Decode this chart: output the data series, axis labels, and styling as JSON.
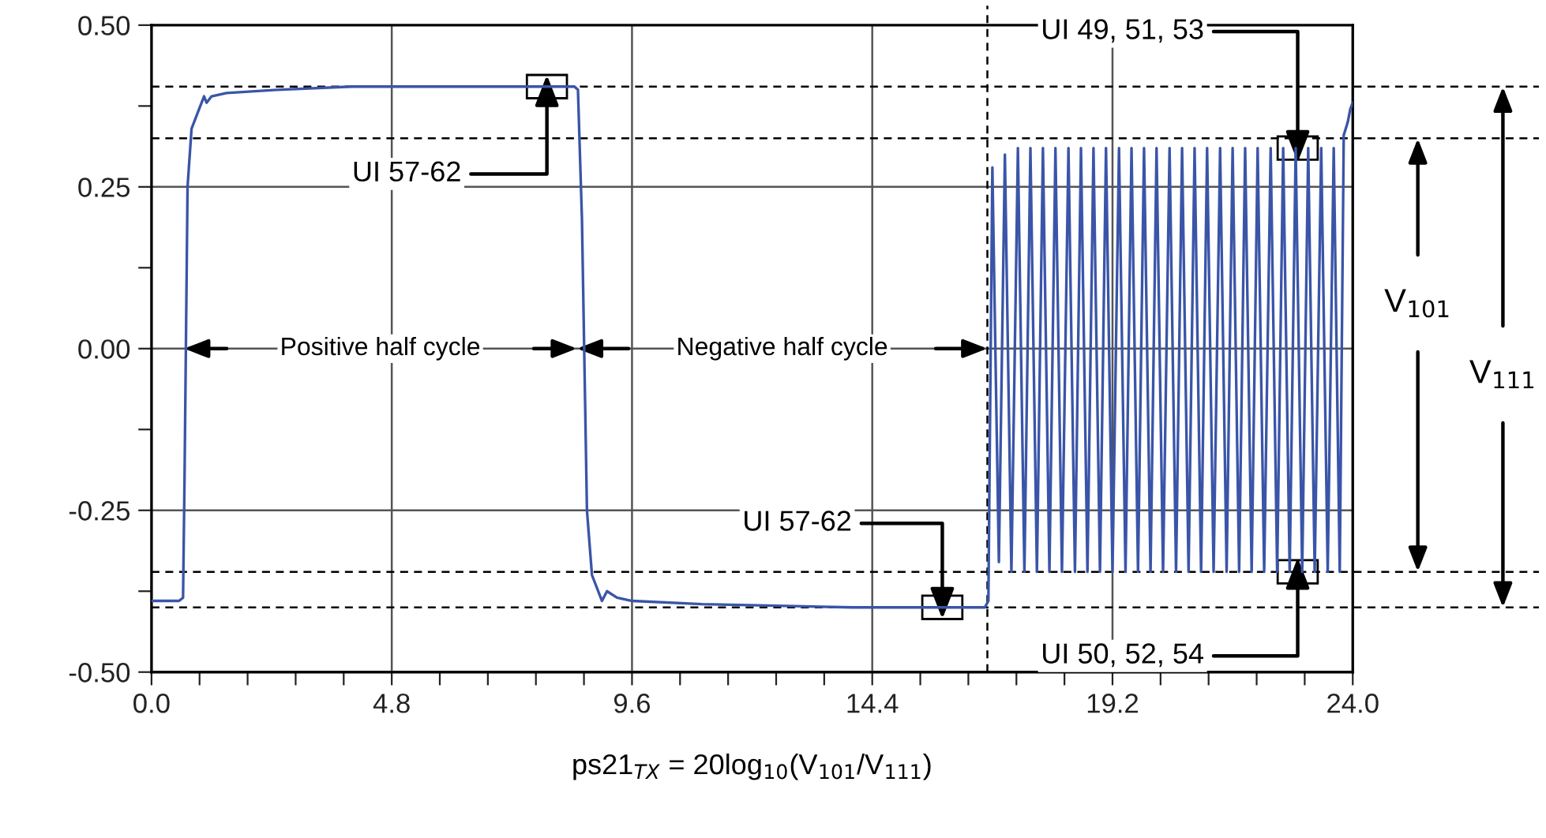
{
  "chart_data": {
    "type": "line",
    "xlabel": "ps21$_{TX}$ = 20log$_{10}$(V$_{101}$/V$_{111}$)",
    "series": [
      {
        "color": "#3a55a8",
        "line_style": "solid",
        "marker": "none",
        "x": [
          0,
          0.55,
          0.63,
          0.66,
          0.72,
          0.8,
          0.95,
          1.05,
          1.1,
          1.2,
          1.5,
          2.5,
          4,
          6,
          8.45,
          8.52,
          8.6,
          8.7,
          8.8,
          9.0,
          9.1,
          9.3,
          9.6,
          11,
          14,
          16.65,
          16.72,
          16.8,
          16.93,
          17.05,
          17.18,
          17.31,
          17.44,
          17.56,
          17.69,
          17.81,
          17.94,
          18.06,
          18.19,
          18.32,
          18.45,
          18.57,
          18.7,
          18.82,
          18.95,
          19.07,
          19.2,
          19.33,
          19.46,
          19.58,
          19.71,
          19.83,
          19.96,
          20.08,
          20.21,
          20.34,
          20.47,
          20.59,
          20.72,
          20.84,
          20.97,
          21.09,
          21.22,
          21.35,
          21.48,
          21.6,
          21.73,
          21.85,
          21.98,
          22.1,
          22.23,
          22.36,
          22.49,
          22.61,
          22.74,
          22.86,
          22.99,
          23.11,
          23.24,
          23.37,
          23.5,
          23.62,
          23.74,
          23.82,
          23.9,
          23.95,
          24.0
        ],
        "values": [
          -0.39,
          -0.39,
          -0.385,
          -0.2,
          0.25,
          0.34,
          0.37,
          0.39,
          0.38,
          0.39,
          0.395,
          0.4,
          0.405,
          0.405,
          0.405,
          0.4,
          0.2,
          -0.25,
          -0.35,
          -0.39,
          -0.375,
          -0.385,
          -0.39,
          -0.395,
          -0.4,
          -0.4,
          -0.39,
          0.28,
          -0.33,
          0.3,
          -0.345,
          0.31,
          -0.345,
          0.31,
          -0.345,
          0.31,
          -0.345,
          0.31,
          -0.345,
          0.31,
          -0.345,
          0.31,
          -0.345,
          0.31,
          -0.345,
          0.31,
          -0.345,
          0.31,
          -0.345,
          0.31,
          -0.345,
          0.31,
          -0.345,
          0.31,
          -0.345,
          0.31,
          -0.345,
          0.31,
          -0.345,
          0.31,
          -0.345,
          0.31,
          -0.345,
          0.31,
          -0.345,
          0.31,
          -0.345,
          0.31,
          -0.345,
          0.31,
          -0.345,
          0.31,
          -0.345,
          0.31,
          -0.345,
          0.31,
          -0.345,
          0.31,
          -0.345,
          0.31,
          -0.345,
          0.31,
          -0.345,
          0.33,
          0.35,
          0.37,
          0.38
        ]
      }
    ],
    "xlim": [
      0,
      24
    ],
    "ylim": [
      -0.5,
      0.5
    ],
    "xticks": [
      {
        "value": 0,
        "label": "0.0"
      },
      {
        "value": 0.96,
        "label": null
      },
      {
        "value": 1.92,
        "label": null
      },
      {
        "value": 2.88,
        "label": null
      },
      {
        "value": 3.84,
        "label": null
      },
      {
        "value": 4.8,
        "label": "4.8"
      },
      {
        "value": 5.76,
        "label": null
      },
      {
        "value": 6.72,
        "label": null
      },
      {
        "value": 7.68,
        "label": null
      },
      {
        "value": 8.64,
        "label": null
      },
      {
        "value": 9.6,
        "label": "9.6"
      },
      {
        "value": 10.56,
        "label": null
      },
      {
        "value": 11.52,
        "label": null
      },
      {
        "value": 12.48,
        "label": null
      },
      {
        "value": 13.44,
        "label": null
      },
      {
        "value": 14.4,
        "label": "14.4"
      },
      {
        "value": 15.36,
        "label": null
      },
      {
        "value": 16.32,
        "label": null
      },
      {
        "value": 17.28,
        "label": null
      },
      {
        "value": 18.24,
        "label": null
      },
      {
        "value": 19.2,
        "label": "19.2"
      },
      {
        "value": 20.16,
        "label": null
      },
      {
        "value": 21.12,
        "label": null
      },
      {
        "value": 22.08,
        "label": null
      },
      {
        "value": 23.04,
        "label": null
      },
      {
        "value": 24,
        "label": "24.0"
      }
    ],
    "yticks": [
      {
        "value": -0.5,
        "label": "-0.50"
      },
      {
        "value": -0.375,
        "label": null
      },
      {
        "value": -0.25,
        "label": "-0.25"
      },
      {
        "value": -0.125,
        "label": null
      },
      {
        "value": 0,
        "label": "0.00"
      },
      {
        "value": 0.125,
        "label": null
      },
      {
        "value": 0.25,
        "label": "0.25"
      },
      {
        "value": 0.375,
        "label": null
      },
      {
        "value": 0.5,
        "label": "0.50"
      }
    ],
    "grid": true,
    "legend": false,
    "ref_lines": [
      {
        "axis": "y",
        "value": 0.405,
        "color": "#000000",
        "line_style": "dashed"
      },
      {
        "axis": "y",
        "value": 0.325,
        "color": "#000000",
        "line_style": "dashed"
      },
      {
        "axis": "y",
        "value": -0.345,
        "color": "#000000",
        "line_style": "dashed"
      },
      {
        "axis": "y",
        "value": -0.4,
        "color": "#000000",
        "line_style": "dashed"
      },
      {
        "axis": "x",
        "value": 16.7,
        "color": "#000000",
        "line_style": "dashed"
      }
    ],
    "annotations": [
      {
        "text": "UI 57-62",
        "x": 7.9,
        "y": 0.405
      },
      "Positive half cycle",
      "Negative half cycle",
      {
        "text": "UI 57-62",
        "x": 15.8,
        "y": -0.4
      },
      {
        "text": "UI 49, 51, 53",
        "x": 22.9,
        "y": 0.31
      },
      {
        "text": "UI 50, 52, 54",
        "x": 22.9,
        "y": -0.345
      },
      "V$_{101}$",
      "V$_{111}$"
    ]
  }
}
